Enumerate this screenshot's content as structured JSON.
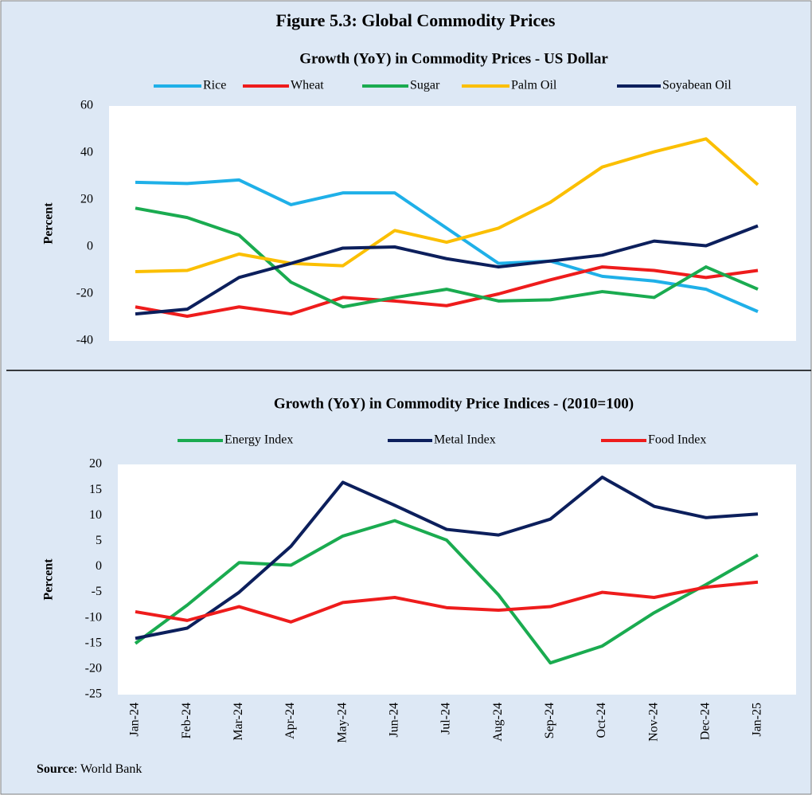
{
  "title": "Figure 5.3: Global Commodity Prices",
  "source": {
    "label": "Source",
    "text": ": World Bank"
  },
  "chart_data": [
    {
      "type": "line",
      "title": "Growth (YoY) in Commodity Prices - US Dollar",
      "y_label": "Percent",
      "ylim": [
        -40,
        60
      ],
      "yticks": [
        -40,
        -20,
        0,
        20,
        40,
        60
      ],
      "grid": false,
      "series": [
        {
          "name": "Rice",
          "color": "#1fb0e8",
          "values": [
            27.5,
            27,
            28.5,
            18,
            23,
            23,
            8,
            -7,
            -6,
            -12.5,
            -14.5,
            -18,
            -27.5
          ]
        },
        {
          "name": "Wheat",
          "color": "#ee1c1c",
          "values": [
            -25.5,
            -29.5,
            -25.5,
            -28.5,
            -21.5,
            -23,
            -25,
            -20,
            -14,
            -8.5,
            -10,
            -13,
            -10
          ]
        },
        {
          "name": "Sugar",
          "color": "#1aab50",
          "values": [
            16.5,
            12.5,
            5,
            -15,
            -25.5,
            -21.5,
            -18,
            -23,
            -22.5,
            -19,
            -21.5,
            -8.5,
            -18
          ]
        },
        {
          "name": "Palm Oil",
          "color": "#fbbf00",
          "values": [
            -10.5,
            -10,
            -3,
            -7,
            -8,
            7,
            2,
            8,
            19,
            34,
            40.5,
            46,
            26.5
          ]
        },
        {
          "name": "Soyabean Oil",
          "color": "#0c1f5c",
          "values": [
            -28.5,
            -26.5,
            -13,
            -7,
            -0.5,
            0,
            -5,
            -8.5,
            -6,
            -3.5,
            2.5,
            0.5,
            9
          ]
        }
      ]
    },
    {
      "type": "line",
      "title": "Growth (YoY) in Commodity Price Indices -  (2010=100)",
      "y_label": "Percent",
      "categories": [
        "Jan-24",
        "Feb-24",
        "Mar-24",
        "Apr-24",
        "May-24",
        "Jun-24",
        "Jul-24",
        "Aug-24",
        "Sep-24",
        "Oct-24",
        "Nov-24",
        "Dec-24",
        "Jan-25"
      ],
      "ylim": [
        -25,
        20
      ],
      "yticks": [
        -25,
        -20,
        -15,
        -10,
        -5,
        0,
        5,
        10,
        15,
        20
      ],
      "grid": false,
      "series": [
        {
          "name": "Energy Index",
          "color": "#1aab50",
          "values": [
            -15,
            -7.5,
            0.8,
            0.3,
            6,
            9,
            5.2,
            -5.5,
            -18.8,
            -15.5,
            -9,
            -3.5,
            2.3
          ]
        },
        {
          "name": "Metal Index",
          "color": "#0c1f5c",
          "values": [
            -14,
            -12,
            -5,
            4,
            16.5,
            12,
            7.3,
            6.2,
            9.3,
            17.5,
            11.8,
            9.6,
            10.3
          ]
        },
        {
          "name": "Food Index",
          "color": "#ee1c1c",
          "values": [
            -8.8,
            -10.5,
            -7.8,
            -10.8,
            -7,
            -6,
            -8,
            -8.5,
            -7.8,
            -5,
            -6,
            -4,
            -3
          ]
        }
      ]
    }
  ]
}
